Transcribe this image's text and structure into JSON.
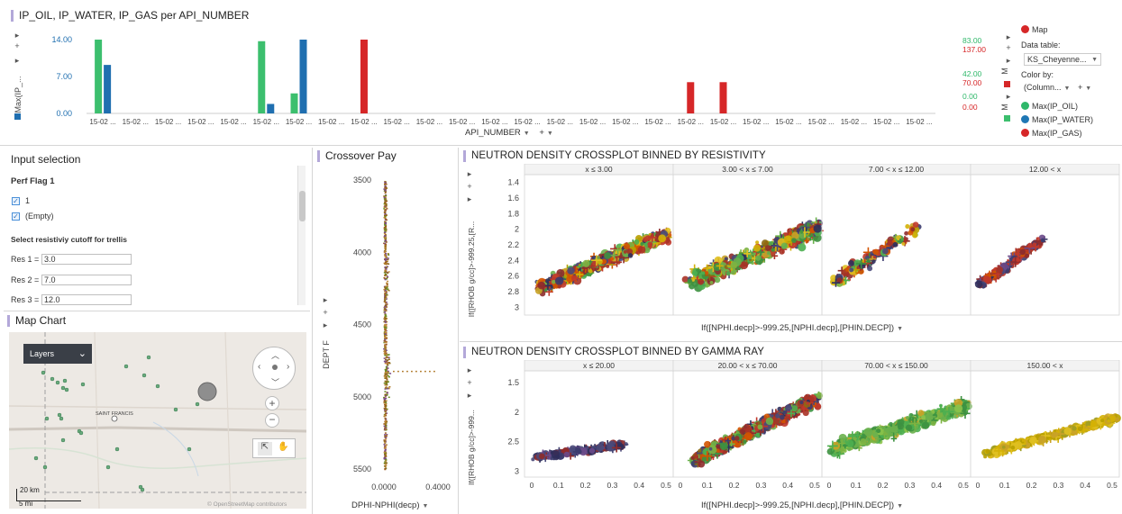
{
  "top": {
    "title": "IP_OIL, IP_WATER, IP_GAS per API_NUMBER",
    "y_axis_label": "Max(IP_...",
    "left_ticks": [
      "14.00",
      "7.00",
      "0.00"
    ],
    "right_ticks_green": [
      "83.00",
      "42.00",
      "0.00"
    ],
    "right_ticks_red": [
      "137.00",
      "70.00",
      "0.00"
    ],
    "x_labels": [
      "15-02 ...",
      "15-02 ...",
      "15-02 ...",
      "15-02 ...",
      "15-02 ...",
      "15-02 ...",
      "15-02 ...",
      "15-02 ...",
      "15-02 ...",
      "15-02 ...",
      "15-02 ...",
      "15-02 ...",
      "15-02 ...",
      "15-02 ...",
      "15-02 ...",
      "15-02 ...",
      "15-02 ...",
      "15-02 ...",
      "15-02 ...",
      "15-02 ...",
      "15-02 ...",
      "15-02 ...",
      "15-02 ...",
      "15-02 ...",
      "15-02 ...",
      "15-02 ..."
    ],
    "x_dropdown": "API_NUMBER",
    "right_marker_m1": "M",
    "right_marker_m2": "M",
    "side": {
      "map_label": "Map",
      "data_table_label": "Data table:",
      "data_table_value": "KS_Cheyenne...",
      "color_by_label": "Color by:",
      "color_by_value": "(Column...",
      "legend": [
        {
          "label": "Max(IP_OIL)",
          "color": "#2fb86a"
        },
        {
          "label": "Max(IP_WATER)",
          "color": "#1f77b4"
        },
        {
          "label": "Max(IP_GAS)",
          "color": "#d62728"
        }
      ]
    }
  },
  "chart_data": [
    {
      "type": "bar",
      "title": "IP_OIL, IP_WATER, IP_GAS per API_NUMBER",
      "xlabel": "API_NUMBER",
      "ylabel": "Max(IP_...",
      "ylim": [
        0,
        14
      ],
      "series": [
        {
          "name": "Max(IP_OIL)",
          "color": "#3cbf6e",
          "values": [
            14,
            0,
            0,
            0,
            0,
            13.7,
            3.8,
            0,
            0,
            0,
            0,
            0,
            0,
            0,
            0,
            0,
            0,
            0,
            0,
            0,
            0,
            0,
            0,
            0,
            0,
            0
          ]
        },
        {
          "name": "Max(IP_WATER)",
          "color": "#1f6fb0",
          "values": [
            9.2,
            0,
            0,
            0,
            0,
            1.8,
            14,
            0,
            0,
            0,
            0,
            0,
            0,
            0,
            0,
            0,
            0,
            0,
            0,
            0,
            0,
            0,
            0,
            0,
            0,
            0
          ]
        },
        {
          "name": "Max(IP_GAS)",
          "color": "#d62728",
          "values": [
            0,
            0,
            0,
            0,
            0,
            0,
            0,
            0,
            137,
            0,
            0,
            0,
            0,
            0,
            0,
            0,
            0,
            0,
            58,
            58,
            0,
            0,
            0,
            0,
            0,
            0
          ],
          "ylim": [
            0,
            137
          ]
        }
      ]
    },
    {
      "type": "scatter",
      "title": "Crossover Pay",
      "xlabel": "DPHI-NPHI(decp)",
      "ylabel": "DEPT F",
      "x_ticks": [
        "0.0000",
        "0.4000"
      ],
      "y_ticks": [
        "3500",
        "4000",
        "4500",
        "5000",
        "5500"
      ]
    },
    {
      "type": "scatter",
      "title": "NEUTRON DENSITY CROSSPLOT BINNED BY RESISTIVITY",
      "panels": [
        "x ≤ 3.00",
        "3.00 < x ≤ 7.00",
        "7.00 < x ≤ 12.00",
        "12.00 < x"
      ],
      "xlabel": "If([NPHI.decp]>-999.25,[NPHI.decp],[PHIN.DECP])",
      "ylabel": "If([RHOB g/cc]>-999.25,[R...",
      "y_ticks": [
        "1.4",
        "1.6",
        "1.8",
        "2",
        "2.2",
        "2.4",
        "2.6",
        "2.8",
        "3"
      ]
    },
    {
      "type": "scatter",
      "title": "NEUTRON DENSITY CROSSPLOT BINNED BY GAMMA RAY",
      "panels": [
        "x ≤ 20.00",
        "20.00 < x ≤ 70.00",
        "70.00 < x ≤ 150.00",
        "150.00 < x"
      ],
      "xlabel": "If([NPHI.decp]>-999.25,[NPHI.decp],[PHIN.DECP])",
      "ylabel": "If([RHOB g/cc]>-999...",
      "y_ticks": [
        "1.5",
        "2",
        "2.5",
        "3"
      ],
      "x_ticks": [
        "0",
        "0.1",
        "0.2",
        "0.3",
        "0.4",
        "0.5"
      ]
    }
  ],
  "input": {
    "title": "Input selection",
    "perf_label": "Perf Flag 1",
    "checks": [
      "1",
      "(Empty)"
    ],
    "cutoff_label": "Select resistiviy cutoff for trellis",
    "res": [
      {
        "label": "Res 1 =",
        "value": "3.0"
      },
      {
        "label": "Res 2 =",
        "value": "7.0"
      },
      {
        "label": "Res 3 =",
        "value": "12.0"
      }
    ]
  },
  "map": {
    "title": "Map Chart",
    "layers_label": "Layers",
    "town": "SAINT FRANCIS",
    "scale_km": "20 km",
    "scale_mi": "5 mi",
    "attribution": "© OpenStreetMap contributors"
  },
  "crossover": {
    "title": "Crossover Pay",
    "y_label": "DEPT F",
    "x_dropdown": "DPHI-NPHI(decp)"
  },
  "res_plot": {
    "title": "NEUTRON DENSITY CROSSPLOT BINNED BY RESISTIVITY",
    "x_dropdown": "If([NPHI.decp]>-999.25,[NPHI.decp],[PHIN.DECP])"
  },
  "gr_plot": {
    "title": "NEUTRON DENSITY CROSSPLOT BINNED BY GAMMA RAY",
    "x_dropdown": "If([NPHI.decp]>-999.25,[NPHI.decp],[PHIN.DECP])"
  }
}
